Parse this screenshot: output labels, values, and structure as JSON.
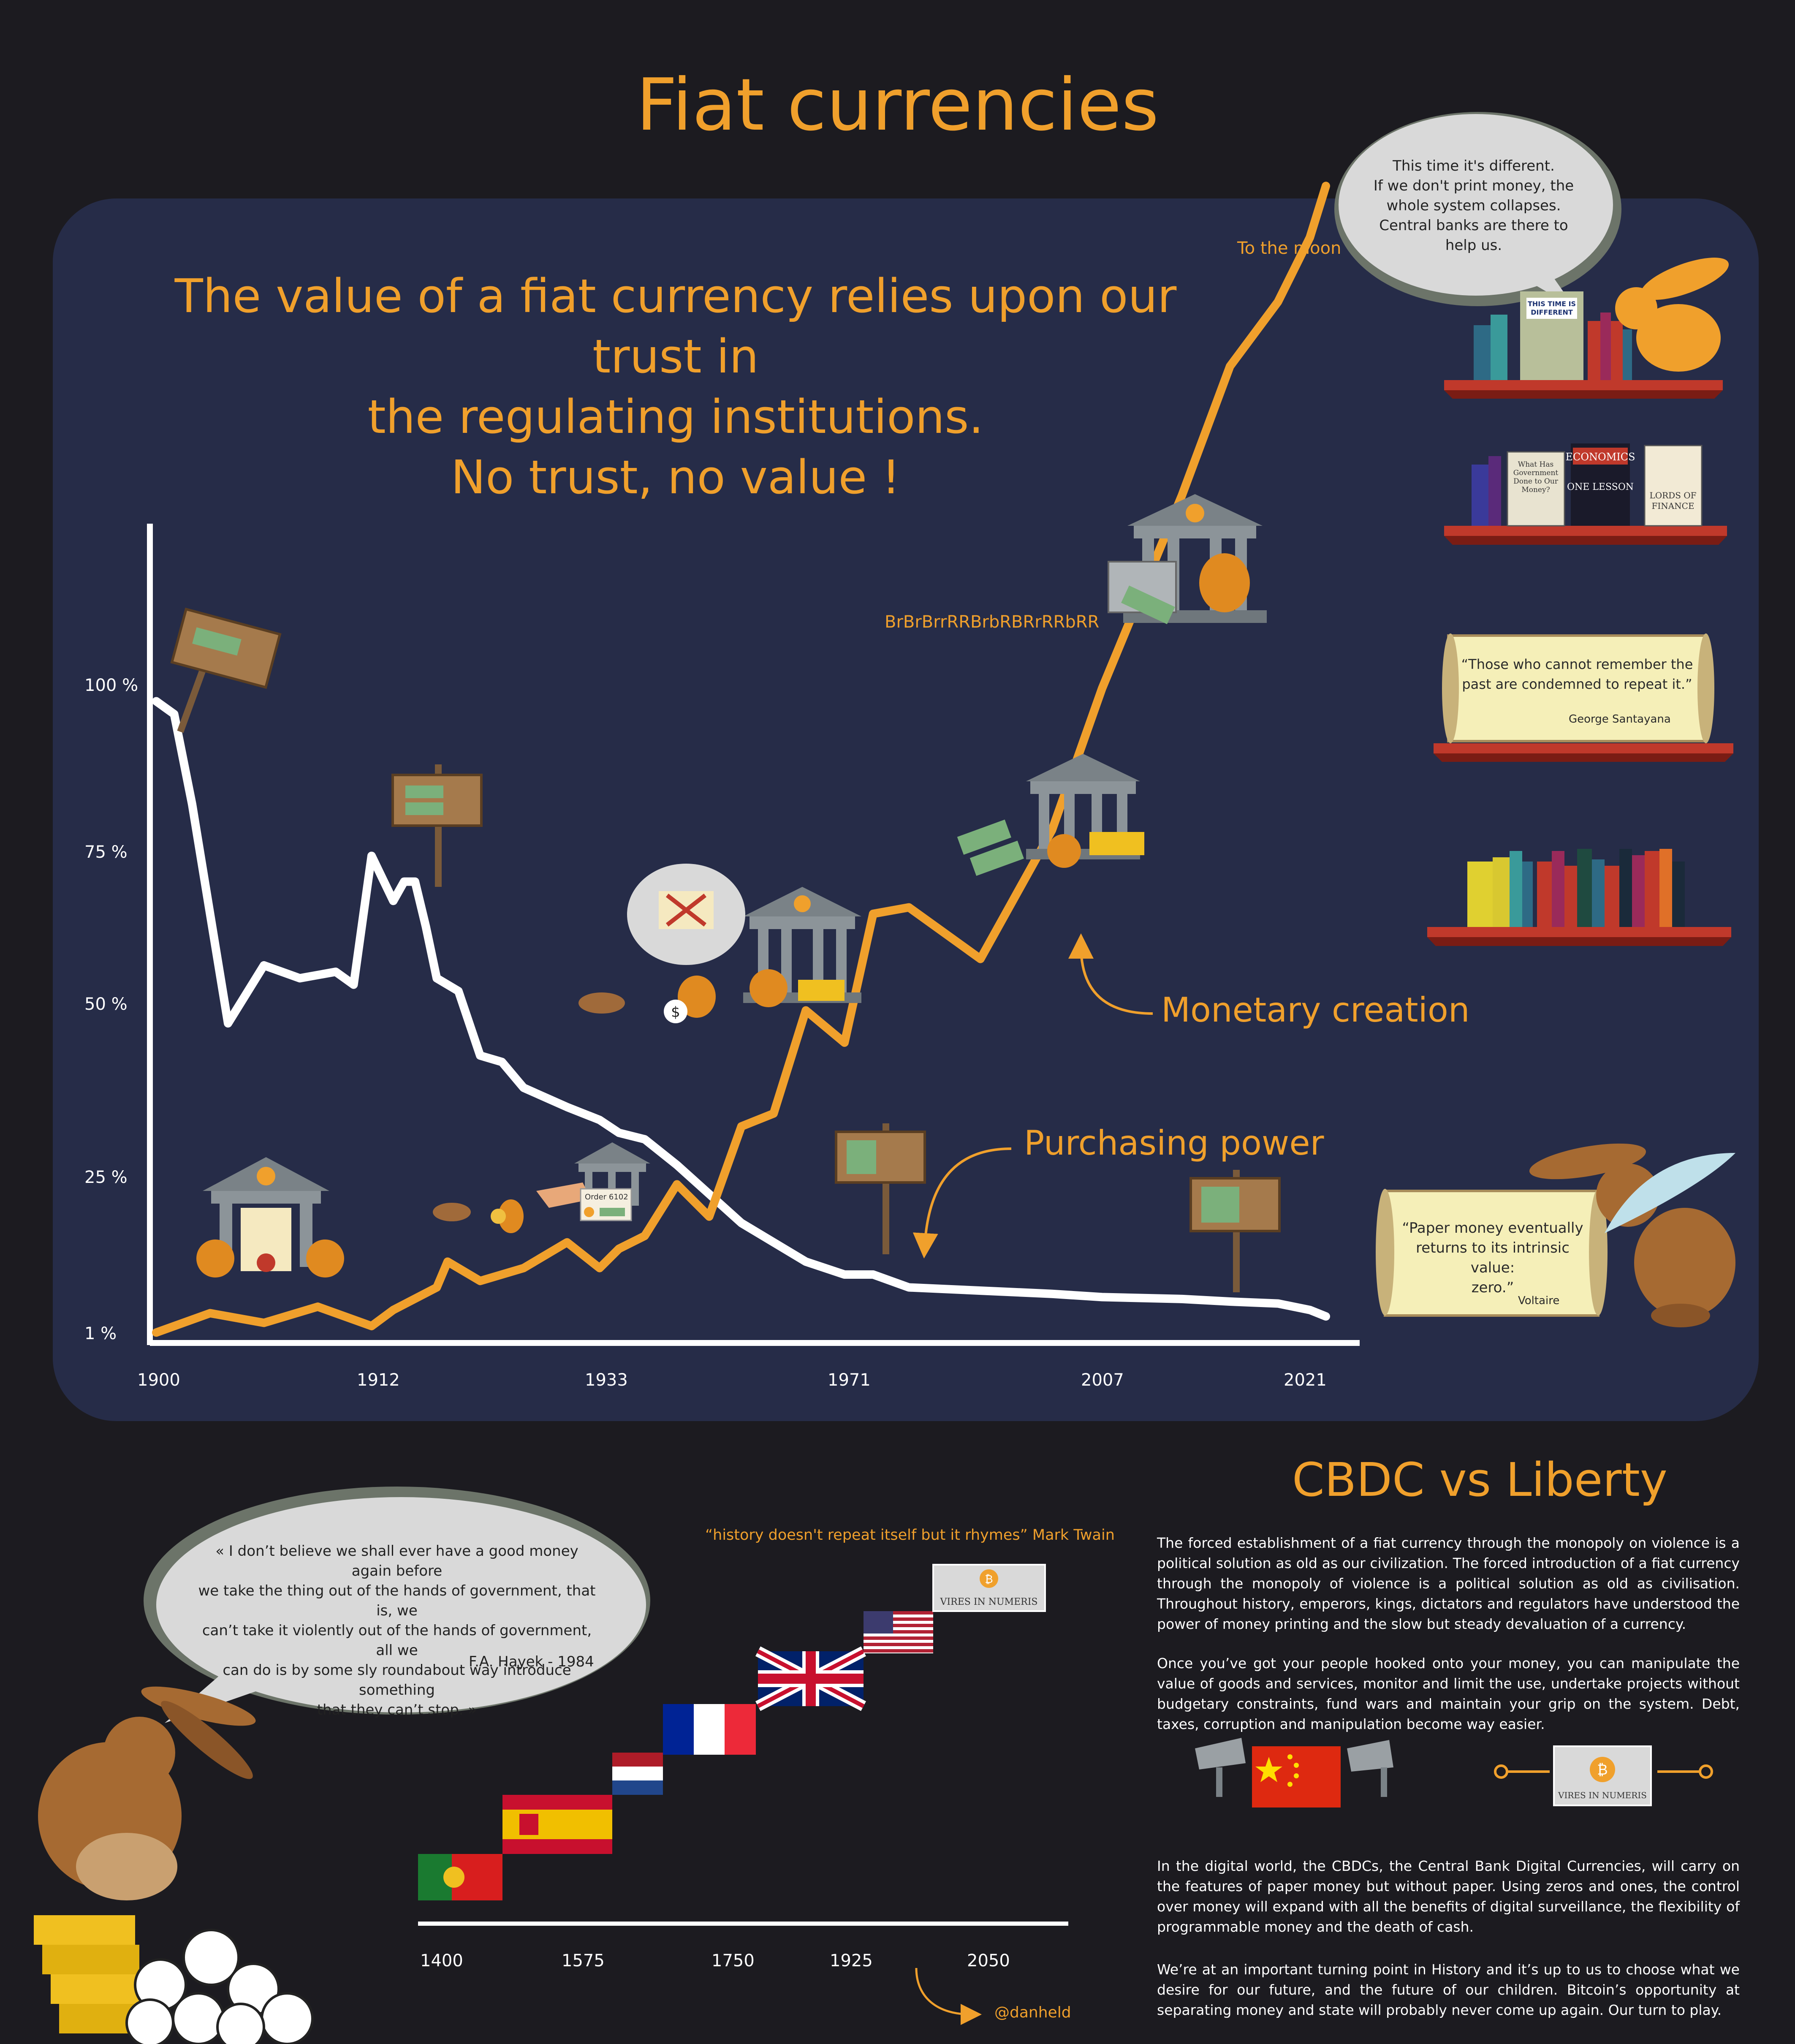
{
  "title": "Fiat currencies",
  "headline": [
    "The value of a fiat currency relies upon our trust in",
    "the regulating institutions.",
    "No trust, no value !"
  ],
  "y_axis_labels": [
    "100 %",
    "75 %",
    "50 %",
    "25 %",
    "1 %"
  ],
  "x_axis_labels": [
    "1900",
    "1912",
    "1933",
    "1971",
    "2007",
    "2021"
  ],
  "labels": {
    "to_the_moon": "To the moon",
    "printer_sound": "BrBrBrrRRBrbRBRrRRbRR",
    "monetary_creation": "Monetary creation",
    "purchasing_power": "Purchasing power",
    "order_6102": "Order 6102"
  },
  "chart_data": {
    "type": "line",
    "title": "Fiat currencies",
    "xlabel": "",
    "ylabel": "",
    "x_tick_labels": [
      "1900",
      "1912",
      "1933",
      "1971",
      "2007",
      "2021"
    ],
    "ylim_percent": [
      1,
      100
    ],
    "series": [
      {
        "name": "Purchasing power",
        "color": "#ffffff",
        "x": [
          1900,
          1901,
          1902,
          1904,
          1906,
          1908,
          1910,
          1911,
          1912,
          1914,
          1915,
          1916,
          1917,
          1918,
          1920,
          1922,
          1924,
          1926,
          1930,
          1933,
          1936,
          1940,
          1945,
          1955,
          1965,
          1971,
          1975,
          1980,
          1990,
          2000,
          2007,
          2012,
          2015,
          2018,
          2020,
          2021
        ],
        "values": [
          98,
          96,
          82,
          48,
          57,
          55,
          56,
          54,
          74,
          67,
          70,
          70,
          63,
          55,
          53,
          43,
          42,
          38,
          35,
          33,
          31,
          30,
          26,
          17,
          11,
          9,
          9,
          7,
          6.5,
          6,
          5.5,
          5.2,
          4.8,
          4.5,
          3.5,
          2.5
        ]
      },
      {
        "name": "Monetary creation",
        "color": "#f0a02c",
        "x": [
          1900,
          1903,
          1906,
          1909,
          1912,
          1914,
          1918,
          1919,
          1922,
          1926,
          1930,
          1933,
          1936,
          1940,
          1945,
          1950,
          1955,
          1960,
          1965,
          1971,
          1975,
          1980,
          1990,
          2000,
          2007,
          2012,
          2015,
          2018,
          2019,
          2020,
          2021
        ],
        "values": [
          0,
          3,
          1.5,
          4,
          1,
          3.5,
          7,
          11,
          8,
          10,
          14,
          10,
          13,
          15,
          23,
          18,
          32,
          34,
          50,
          45,
          65,
          66,
          58,
          78,
          100,
          130,
          150,
          160,
          165,
          170,
          178
        ]
      }
    ]
  },
  "bubble_top": [
    "This time it's different.",
    "If we don't print money, the",
    "whole system collapses.",
    "Central banks are there to",
    "help us."
  ],
  "books": {
    "this_time_different": [
      "THIS TIME IS",
      "DIFFERENT"
    ],
    "what_has_government": [
      "What Has",
      "Government",
      "Done to Our",
      "Money?"
    ],
    "economics_one_lesson": [
      "ECONOMICS",
      "ONE LESSON"
    ],
    "lords_of_finance": [
      "LORDS OF",
      "FINANCE"
    ]
  },
  "quote_santayana": {
    "text": [
      "“Those who cannot remember the",
      "past are condemned to repeat it.”"
    ],
    "author": "George Santayana"
  },
  "quote_voltaire": {
    "text": [
      "“Paper money eventually",
      "returns to its intrinsic value:",
      "zero.”"
    ],
    "author": "Voltaire"
  },
  "cbdc_title": "CBDC vs Liberty",
  "paragraphs": [
    "The forced establishment of a fiat currency through the monopoly on violence is a political solution as old as our civilization. The forced introduction of a fiat currency through the monopoly of violence is a political solution as old as civilisation. Throughout history, emperors, kings, dictators and regulators have understood the power of money printing and the slow but steady devaluation of a currency.",
    "Once you’ve got your people hooked onto your money, you can manipulate the value of goods and services, monitor and limit the use, undertake projects without budgetary constraints, fund wars and maintain your grip on the system. Debt, taxes, corruption and manipulation become way easier.",
    "In the digital world, the CBDCs, the Central Bank Digital Currencies, will carry on the features of paper money but without paper. Using zeros and ones, the control over money will expand with all the benefits of digital surveillance, the flexibility of programmable money and the death of cash.",
    "We’re at an important turning point in History and it’s up to us to choose what we desire for our future, and the future of our children. Bitcoin’s opportunity at separating money and state will probably never come up again. Our turn to play."
  ],
  "hayek_quote": {
    "text": [
      "« I don’t believe we shall ever have a good money again before",
      "we take the thing out of the hands of government, that is, we",
      "can’t take it violently out of the hands of government, all we",
      "can do is by some sly roundabout way introduce something",
      "that they can’t stop. »"
    ],
    "author": "F.A. Hayek - 1984"
  },
  "twain_quote": "“history doesn't repeat itself but it rhymes” Mark Twain",
  "timeline_years": [
    "1400",
    "1575",
    "1750",
    "1925",
    "2050"
  ],
  "vires_label": "VIRES IN NUMERIS",
  "bitcoin_symbol": "₿",
  "dollar_symbol": "$",
  "handle": "@danheld",
  "colors": {
    "background": "#1c1b20",
    "panel": "#262c48",
    "accent": "#f0a02c",
    "line_purchasing_power": "#ffffff",
    "line_monetary_creation": "#f0a02c"
  }
}
